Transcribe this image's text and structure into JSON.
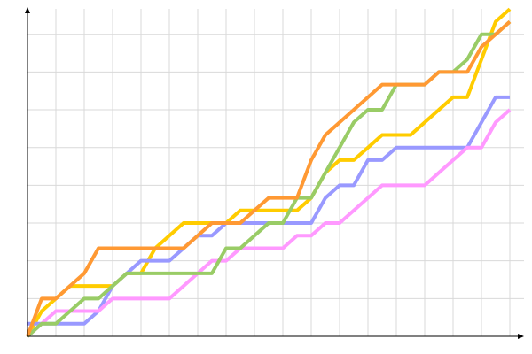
{
  "chart_data": {
    "type": "line",
    "title": "",
    "xlabel": "",
    "ylabel": "",
    "xlim": [
      0,
      35
    ],
    "ylim": [
      0,
      26
    ],
    "grid": true,
    "grid_x_step": 2,
    "grid_y_step": 3,
    "x": [
      0,
      1,
      2,
      3,
      4,
      5,
      6,
      7,
      8,
      9,
      10,
      11,
      12,
      13,
      14,
      15,
      16,
      17,
      18,
      19,
      20,
      21,
      22,
      23,
      24,
      25,
      26,
      27,
      28,
      29,
      30,
      31,
      32,
      33,
      34
    ],
    "series": [
      {
        "color": "#ffcc00",
        "values": [
          0,
          2,
          3,
          4,
          4,
          4,
          4,
          5,
          5,
          7,
          8,
          9,
          9,
          9,
          9,
          10,
          10,
          10,
          10,
          10,
          11,
          13,
          14,
          14,
          15,
          16,
          16,
          16,
          17,
          18,
          19,
          19,
          22,
          25,
          26
        ]
      },
      {
        "color": "#9999ff",
        "values": [
          1,
          1,
          1,
          1,
          1,
          2,
          4,
          5,
          6,
          6,
          6,
          7,
          8,
          8,
          9,
          9,
          9,
          9,
          9,
          9,
          9,
          11,
          12,
          12,
          14,
          14,
          15,
          15,
          15,
          15,
          15,
          15,
          17,
          19,
          19
        ]
      },
      {
        "color": "#ff99ff",
        "values": [
          0,
          1,
          2,
          2,
          2,
          2,
          3,
          3,
          3,
          3,
          3,
          4,
          5,
          6,
          6,
          7,
          7,
          7,
          7,
          8,
          8,
          9,
          9,
          10,
          11,
          12,
          12,
          12,
          12,
          13,
          14,
          15,
          15,
          17,
          18
        ]
      },
      {
        "color": "#99cc66",
        "values": [
          0,
          1,
          1,
          2,
          3,
          3,
          4,
          5,
          5,
          5,
          5,
          5,
          5,
          5,
          7,
          7,
          8,
          9,
          9,
          11,
          11,
          13,
          15,
          17,
          18,
          18,
          20,
          20,
          20,
          21,
          21,
          22,
          24,
          24,
          25
        ]
      },
      {
        "color": "#ff9933",
        "values": [
          0,
          3,
          3,
          4,
          5,
          7,
          7,
          7,
          7,
          7,
          7,
          7,
          8,
          9,
          9,
          9,
          10,
          11,
          11,
          11,
          14,
          16,
          17,
          18,
          19,
          20,
          20,
          20,
          20,
          21,
          21,
          21,
          23,
          24,
          25
        ]
      }
    ]
  }
}
